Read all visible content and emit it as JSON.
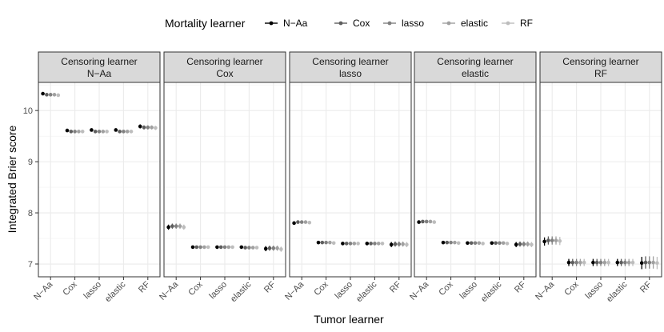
{
  "chart_data": {
    "type": "scatter",
    "facet_variable": "Censoring learner",
    "facets": [
      "N−Aa",
      "Cox",
      "lasso",
      "elastic",
      "RF"
    ],
    "facet_prefix": "Censoring learner",
    "categories": [
      "N−Aa",
      "Cox",
      "lasso",
      "elastic",
      "RF"
    ],
    "xlabel": "Tumor learner",
    "ylabel": "Integrated Brier score",
    "ylim": [
      6.75,
      10.55
    ],
    "yticks": [
      7,
      8,
      9,
      10
    ],
    "ytick_labels": [
      "7",
      "8",
      "9",
      "10"
    ],
    "legend_title": "Mortality learner",
    "legend_position": "top",
    "series": [
      {
        "name": "N−Aa",
        "color": "#000000",
        "values": [
          [
            10.33,
            9.61,
            9.62,
            9.62,
            9.69
          ],
          [
            7.72,
            7.33,
            7.33,
            7.33,
            7.3
          ],
          [
            7.8,
            7.42,
            7.4,
            7.4,
            7.38
          ],
          [
            7.82,
            7.42,
            7.41,
            7.41,
            7.38
          ],
          [
            7.44,
            7.03,
            7.03,
            7.03,
            7.02
          ]
        ],
        "errors": [
          [
            0.02,
            0.02,
            0.02,
            0.02,
            0.04
          ],
          [
            0.05,
            0.02,
            0.02,
            0.02,
            0.05
          ],
          [
            0.03,
            0.02,
            0.02,
            0.02,
            0.05
          ],
          [
            0.03,
            0.02,
            0.02,
            0.02,
            0.05
          ],
          [
            0.08,
            0.07,
            0.07,
            0.07,
            0.12
          ]
        ]
      },
      {
        "name": "Cox",
        "color": "#5e5e5e",
        "values": [
          [
            10.31,
            9.59,
            9.59,
            9.59,
            9.67
          ],
          [
            7.74,
            7.33,
            7.33,
            7.32,
            7.31
          ],
          [
            7.82,
            7.42,
            7.4,
            7.4,
            7.39
          ],
          [
            7.83,
            7.42,
            7.41,
            7.41,
            7.39
          ],
          [
            7.46,
            7.03,
            7.03,
            7.03,
            7.03
          ]
        ],
        "errors": [
          [
            0.02,
            0.02,
            0.02,
            0.02,
            0.04
          ],
          [
            0.05,
            0.02,
            0.02,
            0.02,
            0.05
          ],
          [
            0.03,
            0.02,
            0.02,
            0.02,
            0.05
          ],
          [
            0.03,
            0.02,
            0.02,
            0.02,
            0.05
          ],
          [
            0.08,
            0.07,
            0.07,
            0.07,
            0.12
          ]
        ]
      },
      {
        "name": "lasso",
        "color": "#808080",
        "values": [
          [
            10.31,
            9.59,
            9.59,
            9.59,
            9.67
          ],
          [
            7.74,
            7.33,
            7.33,
            7.32,
            7.31
          ],
          [
            7.82,
            7.42,
            7.4,
            7.4,
            7.39
          ],
          [
            7.83,
            7.42,
            7.41,
            7.41,
            7.39
          ],
          [
            7.46,
            7.03,
            7.03,
            7.03,
            7.03
          ]
        ],
        "errors": [
          [
            0.02,
            0.02,
            0.02,
            0.02,
            0.04
          ],
          [
            0.05,
            0.02,
            0.02,
            0.02,
            0.05
          ],
          [
            0.03,
            0.02,
            0.02,
            0.02,
            0.05
          ],
          [
            0.03,
            0.02,
            0.02,
            0.02,
            0.05
          ],
          [
            0.08,
            0.07,
            0.07,
            0.07,
            0.12
          ]
        ]
      },
      {
        "name": "elastic",
        "color": "#a0a0a0",
        "values": [
          [
            10.31,
            9.59,
            9.59,
            9.59,
            9.67
          ],
          [
            7.74,
            7.33,
            7.33,
            7.32,
            7.31
          ],
          [
            7.82,
            7.42,
            7.4,
            7.4,
            7.39
          ],
          [
            7.83,
            7.42,
            7.41,
            7.41,
            7.39
          ],
          [
            7.46,
            7.03,
            7.03,
            7.03,
            7.03
          ]
        ],
        "errors": [
          [
            0.02,
            0.02,
            0.02,
            0.02,
            0.04
          ],
          [
            0.05,
            0.02,
            0.02,
            0.02,
            0.05
          ],
          [
            0.03,
            0.02,
            0.02,
            0.02,
            0.05
          ],
          [
            0.03,
            0.02,
            0.02,
            0.02,
            0.05
          ],
          [
            0.08,
            0.07,
            0.07,
            0.07,
            0.12
          ]
        ]
      },
      {
        "name": "RF",
        "color": "#bdbdbd",
        "values": [
          [
            10.3,
            9.59,
            9.59,
            9.59,
            9.66
          ],
          [
            7.72,
            7.33,
            7.33,
            7.32,
            7.29
          ],
          [
            7.81,
            7.41,
            7.4,
            7.4,
            7.38
          ],
          [
            7.82,
            7.41,
            7.4,
            7.4,
            7.38
          ],
          [
            7.45,
            7.03,
            7.03,
            7.03,
            7.02
          ]
        ],
        "errors": [
          [
            0.02,
            0.02,
            0.02,
            0.02,
            0.04
          ],
          [
            0.05,
            0.02,
            0.02,
            0.02,
            0.05
          ],
          [
            0.03,
            0.02,
            0.02,
            0.02,
            0.05
          ],
          [
            0.03,
            0.02,
            0.02,
            0.02,
            0.05
          ],
          [
            0.08,
            0.07,
            0.07,
            0.07,
            0.12
          ]
        ]
      }
    ]
  }
}
